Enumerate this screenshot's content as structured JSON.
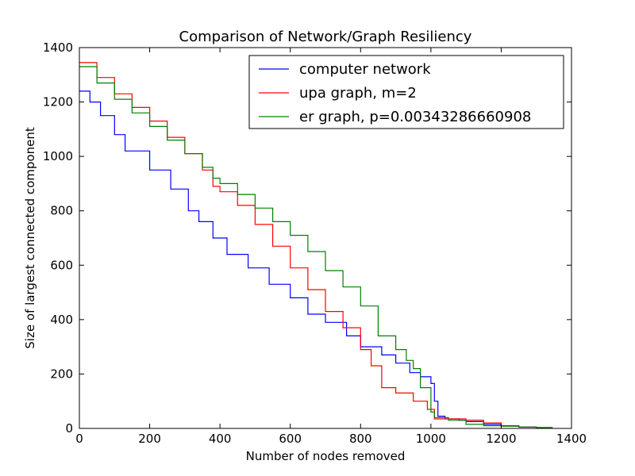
{
  "chart_data": {
    "type": "line",
    "title": "Comparison of Network/Graph Resiliency",
    "xlabel": "Number of nodes removed",
    "ylabel": "Size of largest connected component",
    "xlim": [
      0,
      1400
    ],
    "ylim": [
      0,
      1400
    ],
    "xticks": [
      "0",
      "200",
      "400",
      "600",
      "800",
      "1000",
      "1200",
      "1400"
    ],
    "yticks": [
      "0",
      "200",
      "400",
      "600",
      "800",
      "1000",
      "1200",
      "1400"
    ],
    "grid": false,
    "legend_position": "top-right",
    "series": [
      {
        "name": "computer network",
        "color": "#0000ff",
        "x": [
          0,
          30,
          60,
          100,
          130,
          200,
          260,
          310,
          340,
          380,
          420,
          480,
          540,
          600,
          650,
          700,
          760,
          800,
          860,
          900,
          940,
          970,
          1000,
          1010,
          1020,
          1040,
          1080,
          1100,
          1150,
          1200,
          1250,
          1300,
          1340
        ],
        "y": [
          1240,
          1200,
          1150,
          1080,
          1020,
          950,
          880,
          800,
          760,
          700,
          640,
          590,
          530,
          480,
          420,
          390,
          340,
          300,
          270,
          240,
          205,
          190,
          165,
          100,
          45,
          35,
          30,
          25,
          15,
          10,
          5,
          3,
          0
        ]
      },
      {
        "name": "upa graph, m=2",
        "color": "#ff0000",
        "x": [
          0,
          50,
          100,
          150,
          200,
          250,
          300,
          350,
          380,
          400,
          450,
          500,
          550,
          600,
          650,
          700,
          750,
          800,
          830,
          860,
          900,
          950,
          990,
          1010,
          1050,
          1100,
          1150,
          1200,
          1250,
          1300,
          1345
        ],
        "y": [
          1345,
          1290,
          1230,
          1180,
          1130,
          1070,
          1010,
          950,
          890,
          870,
          820,
          750,
          670,
          590,
          510,
          430,
          370,
          290,
          230,
          150,
          130,
          100,
          70,
          35,
          35,
          30,
          20,
          10,
          5,
          3,
          0
        ]
      },
      {
        "name": "er graph, p=0.00343286660908",
        "color": "#008000",
        "x": [
          0,
          50,
          100,
          150,
          200,
          250,
          300,
          350,
          380,
          400,
          450,
          500,
          550,
          600,
          650,
          700,
          750,
          800,
          850,
          900,
          930,
          950,
          970,
          1000,
          1010,
          1050,
          1100,
          1150,
          1200,
          1250,
          1300,
          1345
        ],
        "y": [
          1330,
          1270,
          1210,
          1160,
          1110,
          1060,
          1010,
          960,
          920,
          900,
          860,
          810,
          760,
          710,
          650,
          580,
          520,
          450,
          340,
          290,
          250,
          220,
          150,
          60,
          40,
          30,
          15,
          10,
          8,
          5,
          3,
          0
        ]
      }
    ]
  }
}
